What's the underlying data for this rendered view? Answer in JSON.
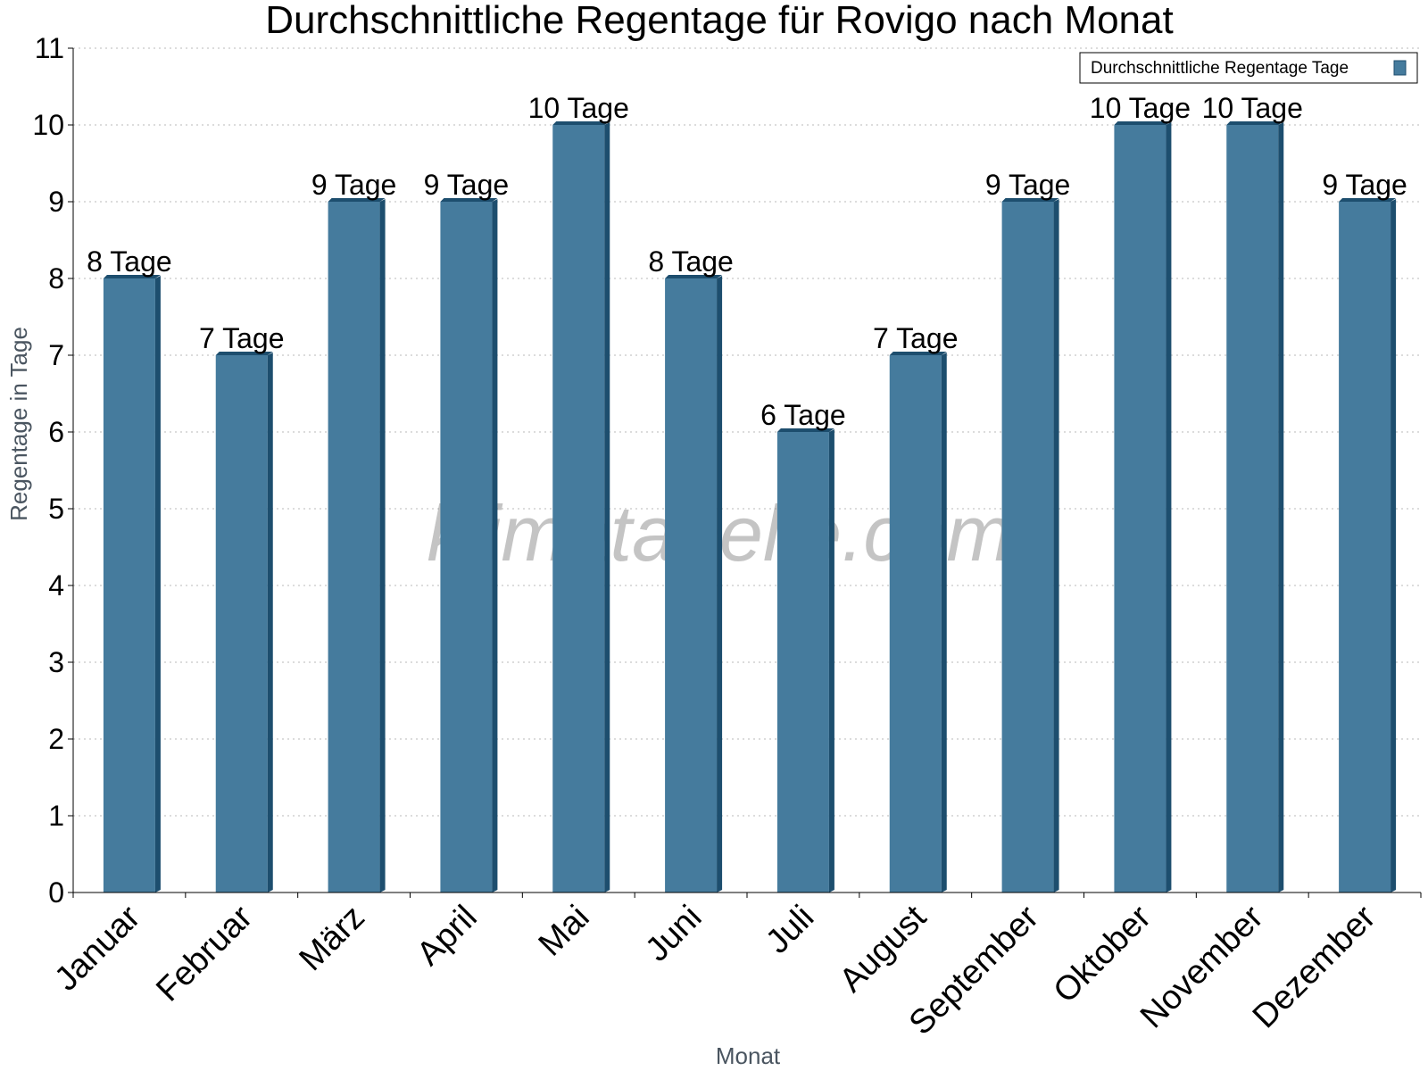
{
  "chart_data": {
    "type": "bar",
    "title": "Durchschnittliche Regentage für Rovigo nach Monat",
    "xlabel": "Monat",
    "ylabel": "Regentage in Tage",
    "ylim": [
      0,
      11
    ],
    "yticks": [
      0,
      1,
      2,
      3,
      4,
      5,
      6,
      7,
      8,
      9,
      10,
      11
    ],
    "grid": true,
    "legend_position": "top-right",
    "categories": [
      "Januar",
      "Februar",
      "März",
      "April",
      "Mai",
      "Juni",
      "Juli",
      "August",
      "September",
      "Oktober",
      "November",
      "Dezember"
    ],
    "series": [
      {
        "name": "Durchschnittliche Regentage Tage",
        "values": [
          8,
          7,
          9,
          9,
          10,
          8,
          6,
          7,
          9,
          10,
          10,
          9
        ],
        "data_labels": [
          "8 Tage",
          "7 Tage",
          "9 Tage",
          "9 Tage",
          "10 Tage",
          "8 Tage",
          "6 Tage",
          "7 Tage",
          "9 Tage",
          "10 Tage",
          "10 Tage",
          "9 Tage"
        ],
        "color": "#457b9d",
        "side_color": "#1d4e6e"
      }
    ],
    "watermark": "klimatabelle.com"
  }
}
